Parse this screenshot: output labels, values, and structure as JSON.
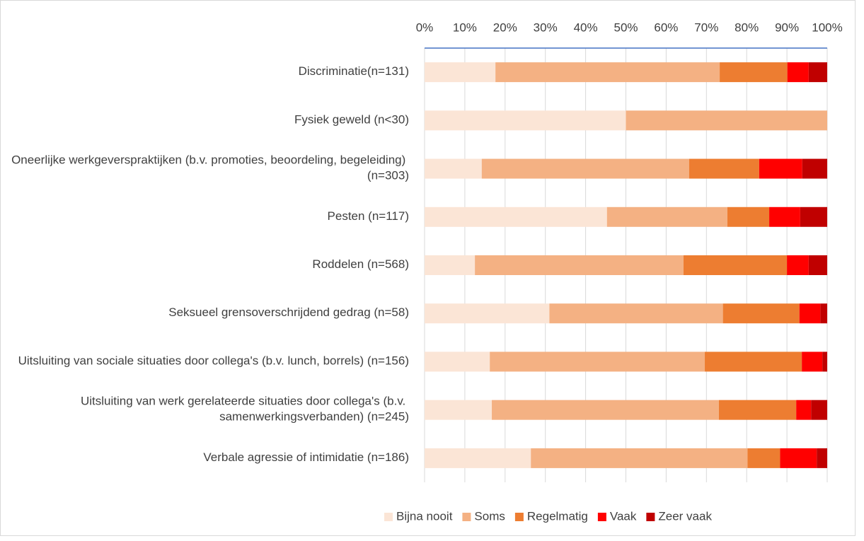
{
  "chart_data": {
    "type": "stacked_bar_horizontal",
    "categories": [
      "Discriminatie(n=131)",
      "Fysiek geweld (n<30)",
      "Oneerlijke werkgeverspraktijken (b.v. promoties, beoordeling, begeleiding) (n=303)",
      "Pesten (n=117)",
      "Roddelen (n=568)",
      "Seksueel grensoverschrijdend gedrag (n=58)",
      "Uitsluiting van sociale situaties door collega's (b.v. lunch, borrels) (n=156)",
      "Uitsluiting van werk gerelateerde situaties door collega's (b.v. samenwerkingsverbanden) (n=245)",
      "Verbale agressie of intimidatie (n=186)"
    ],
    "series": [
      {
        "name": "Bijna nooit",
        "color": "#fbe5d6",
        "values": [
          17.6,
          50,
          14.2,
          45.3,
          12.5,
          31.0,
          16.2,
          16.7,
          26.4
        ]
      },
      {
        "name": "Soms",
        "color": "#f4b183",
        "values": [
          55.7,
          50,
          51.5,
          29.9,
          51.8,
          43.1,
          53.4,
          56.4,
          53.8
        ]
      },
      {
        "name": "Regelmatig",
        "color": "#ed7d31",
        "values": [
          16.8,
          0,
          17.4,
          10.4,
          25.7,
          19.0,
          24.1,
          19.2,
          8.1
        ]
      },
      {
        "name": "Vaak",
        "color": "#ff0000",
        "values": [
          5.3,
          0,
          10.7,
          7.7,
          5.4,
          5.2,
          5.1,
          3.7,
          9.1
        ]
      },
      {
        "name": "Zeer vaak",
        "color": "#c00000",
        "values": [
          4.6,
          0,
          6.2,
          6.7,
          4.6,
          1.7,
          1.2,
          4.0,
          2.6
        ]
      }
    ],
    "xlim": [
      0,
      100
    ],
    "xticks": [
      {
        "value": 0,
        "label": "0%"
      },
      {
        "value": 10,
        "label": "10%"
      },
      {
        "value": 20,
        "label": "20%"
      },
      {
        "value": 30,
        "label": "30%"
      },
      {
        "value": 40,
        "label": "40%"
      },
      {
        "value": 50,
        "label": "50%"
      },
      {
        "value": 60,
        "label": "60%"
      },
      {
        "value": 70,
        "label": "70%"
      },
      {
        "value": 80,
        "label": "80%"
      },
      {
        "value": 90,
        "label": "90%"
      },
      {
        "value": 100,
        "label": "100%"
      }
    ],
    "grid": true,
    "legend": "bottom"
  }
}
